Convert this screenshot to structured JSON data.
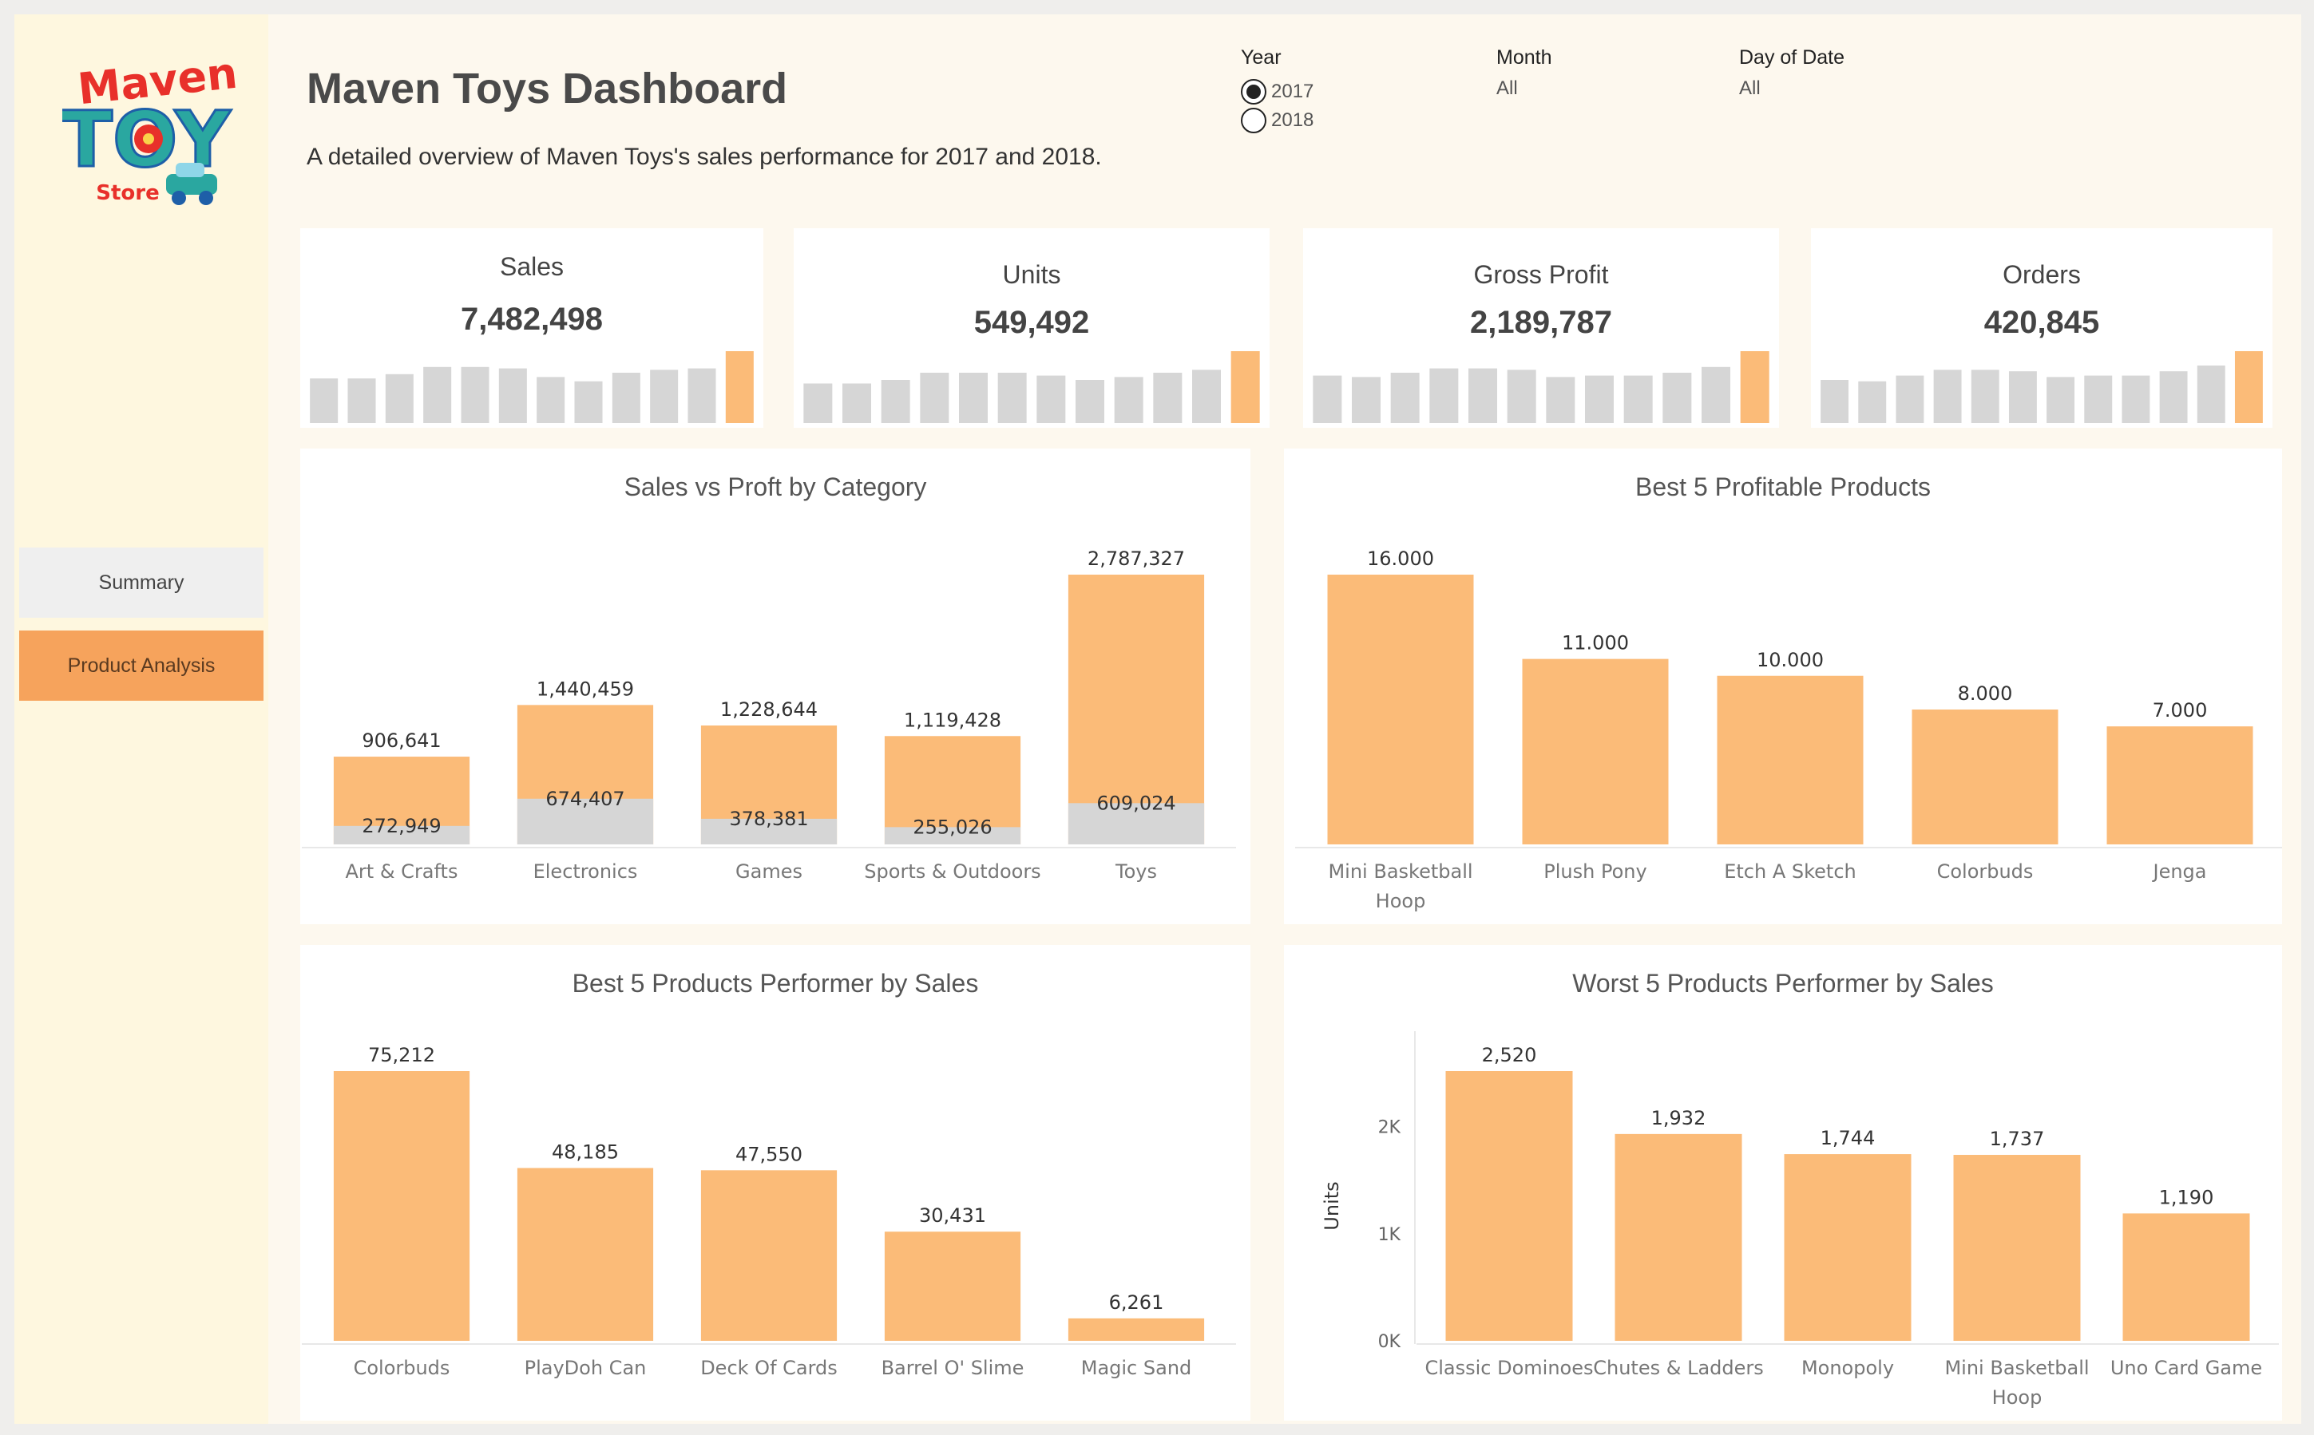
{
  "sidebar": {
    "logo": {
      "line1": "Maven",
      "line2": "TOY",
      "line3": "Store"
    },
    "nav": [
      {
        "label": "Summary"
      },
      {
        "label": "Product Analysis"
      }
    ]
  },
  "header": {
    "title": "Maven Toys Dashboard",
    "subtitle": "A detailed overview of Maven Toys's sales performance for 2017 and 2018."
  },
  "filters": {
    "year": {
      "label": "Year",
      "options": [
        "2017",
        "2018"
      ],
      "selected": "2017"
    },
    "month": {
      "label": "Month",
      "value": "All"
    },
    "day": {
      "label": "Day of Date",
      "value": "All"
    }
  },
  "colors": {
    "accent": "#fbbb78",
    "muted": "#d6d6d6",
    "nav_active": "#f6a35c"
  },
  "kpis": [
    {
      "label": "Sales",
      "value": "7,482,498",
      "sparkline": [
        0.62,
        0.62,
        0.68,
        0.78,
        0.78,
        0.76,
        0.64,
        0.58,
        0.7,
        0.74,
        0.76,
        1.0
      ]
    },
    {
      "label": "Units",
      "value": "549,492",
      "sparkline": [
        0.55,
        0.55,
        0.6,
        0.7,
        0.7,
        0.7,
        0.66,
        0.6,
        0.64,
        0.7,
        0.74,
        1.0
      ]
    },
    {
      "label": "Gross Profit",
      "value": "2,189,787",
      "sparkline": [
        0.66,
        0.64,
        0.7,
        0.76,
        0.76,
        0.74,
        0.64,
        0.66,
        0.66,
        0.7,
        0.78,
        1.0
      ]
    },
    {
      "label": "Orders",
      "value": "420,845",
      "sparkline": [
        0.6,
        0.58,
        0.66,
        0.74,
        0.74,
        0.72,
        0.64,
        0.66,
        0.66,
        0.72,
        0.8,
        1.0
      ]
    }
  ],
  "chart_data": [
    {
      "type": "bar",
      "title": "Sales vs Proft by Category",
      "categories": [
        "Art & Crafts",
        "Electronics",
        "Games",
        "Sports & Outdoors",
        "Toys"
      ],
      "series": [
        {
          "values": [
            906641,
            1440459,
            1228644,
            1119428,
            2787327
          ],
          "labels": [
            "906,641",
            "1,440,459",
            "1,228,644",
            "1,119,428",
            "2,787,327"
          ]
        },
        {
          "values": [
            272949,
            674407,
            378381,
            255026,
            609024
          ],
          "labels": [
            "272,949",
            "674,407",
            "378,381",
            "255,026",
            "609,024"
          ]
        }
      ],
      "ylim": [
        0,
        2787327
      ]
    },
    {
      "type": "bar",
      "title": "Best 5 Profitable Products",
      "categories": [
        "Mini Basketball Hoop",
        "Plush Pony",
        "Etch A Sketch",
        "Colorbuds",
        "Jenga"
      ],
      "values": [
        16,
        11,
        10,
        8,
        7
      ],
      "labels": [
        "16.000",
        "11.000",
        "10.000",
        "8.000",
        "7.000"
      ],
      "ylim": [
        0,
        16
      ]
    },
    {
      "type": "bar",
      "title": "Best 5 Products Performer by Sales",
      "categories": [
        "Colorbuds",
        "PlayDoh Can",
        "Deck Of Cards",
        "Barrel O' Slime",
        "Magic Sand"
      ],
      "values": [
        75212,
        48185,
        47550,
        30431,
        6261
      ],
      "labels": [
        "75,212",
        "48,185",
        "47,550",
        "30,431",
        "6,261"
      ],
      "ylim": [
        0,
        75212
      ]
    },
    {
      "type": "bar",
      "title": "Worst 5 Products Performer by Sales",
      "categories": [
        "Classic Dominoes",
        "Chutes & Ladders",
        "Monopoly",
        "Mini Basketball Hoop",
        "Uno Card Game"
      ],
      "values": [
        2520,
        1932,
        1744,
        1737,
        1190
      ],
      "labels": [
        "2,520",
        "1,932",
        "1,744",
        "1,737",
        "1,190"
      ],
      "ylabel": "Units",
      "yticks": [
        {
          "value": 0,
          "label": "0K"
        },
        {
          "value": 1000,
          "label": "1K"
        },
        {
          "value": 2000,
          "label": "2K"
        }
      ],
      "ylim": [
        0,
        2520
      ]
    }
  ]
}
